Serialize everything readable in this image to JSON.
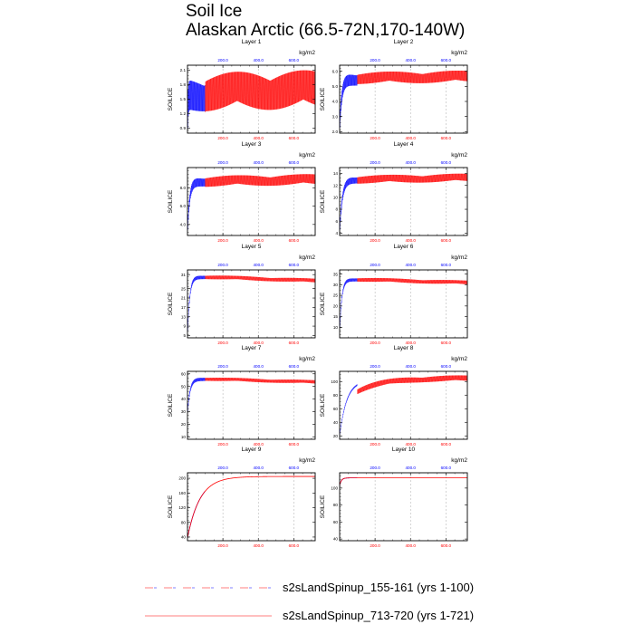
{
  "figure": {
    "title_line1": "Soil Ice",
    "title_line2": "Alaskan Arctic (66.5-72N,170-140W)",
    "ylabel": "SOILICE",
    "top_axis_unit": "kg/m2"
  },
  "legend": [
    {
      "label": "s2sLandSpinup_155-161 (yrs 1-100)",
      "color": "#0000ff",
      "style": "dashed"
    },
    {
      "label": "s2sLandSpinup_713-720 (yrs 1-721)",
      "color": "#ff0000",
      "style": "solid"
    }
  ],
  "chart_data": [
    {
      "type": "line",
      "title": "Layer 1",
      "ylabel": "SOILICE",
      "yticks": [
        "0.9",
        "1.2",
        "1.5",
        "1.8",
        "2.1"
      ],
      "ylim": [
        0.8,
        2.2
      ],
      "xlim": [
        0,
        721
      ],
      "bottom_xticks": [
        "200.0",
        "400.0",
        "600.0"
      ],
      "top_xticks": [
        "200.0",
        "400.0",
        "600.0"
      ],
      "top_unit": "kg/m2",
      "series": [
        {
          "name": "s2sLandSpinup_155-161 (yrs 1-100)",
          "color": "#0000ff",
          "years": [
            1,
            100
          ],
          "start": 1.05,
          "level": 1.6,
          "amplitude": 0.35,
          "rise_tau": 3,
          "trend": 0
        },
        {
          "name": "s2sLandSpinup_713-720 (yrs 1-721)",
          "color": "#ff0000",
          "years": [
            100,
            721
          ],
          "start": 1.6,
          "level": 1.65,
          "amplitude": 0.4,
          "rise_tau": 1,
          "trend": 0.05
        }
      ]
    },
    {
      "type": "line",
      "title": "Layer 2",
      "ylabel": "SOILICE",
      "yticks": [
        "2.0",
        "3.0",
        "4.0",
        "5.0",
        "6.0"
      ],
      "ylim": [
        1.9,
        6.4
      ],
      "xlim": [
        0,
        721
      ],
      "bottom_xticks": [
        "200.0",
        "400.0",
        "600.0"
      ],
      "top_xticks": [
        "200.0",
        "400.0",
        "600.0"
      ],
      "top_unit": "kg/m2",
      "series": [
        {
          "name": "s2sLandSpinup_155-161 (yrs 1-100)",
          "color": "#0000ff",
          "years": [
            1,
            100
          ],
          "start": 2.4,
          "level": 5.5,
          "amplitude": 0.45,
          "rise_tau": 12,
          "trend": 0
        },
        {
          "name": "s2sLandSpinup_713-720 (yrs 1-721)",
          "color": "#ff0000",
          "years": [
            100,
            721
          ],
          "start": 5.55,
          "level": 5.55,
          "amplitude": 0.4,
          "rise_tau": 1,
          "trend": 0.1
        }
      ]
    },
    {
      "type": "line",
      "title": "Layer 3",
      "ylabel": "SOILICE",
      "yticks": [
        "4.0",
        "6.0",
        "8.0"
      ],
      "ylim": [
        2.8,
        10.2
      ],
      "xlim": [
        0,
        721
      ],
      "bottom_xticks": [
        "200.0",
        "400.0",
        "600.0"
      ],
      "top_xticks": [
        "200.0",
        "400.0",
        "600.0"
      ],
      "top_unit": "kg/m2",
      "series": [
        {
          "name": "s2sLandSpinup_155-161 (yrs 1-100)",
          "color": "#0000ff",
          "years": [
            1,
            100
          ],
          "start": 3.5,
          "level": 8.7,
          "amplitude": 0.55,
          "rise_tau": 12,
          "trend": 0
        },
        {
          "name": "s2sLandSpinup_713-720 (yrs 1-721)",
          "color": "#ff0000",
          "years": [
            100,
            721
          ],
          "start": 8.7,
          "level": 8.7,
          "amplitude": 0.6,
          "rise_tau": 1,
          "trend": 0.2
        }
      ]
    },
    {
      "type": "line",
      "title": "Layer 4",
      "ylabel": "SOILICE",
      "yticks": [
        "4",
        "6",
        "8",
        "10",
        "12",
        "14"
      ],
      "ylim": [
        3.6,
        15
      ],
      "xlim": [
        0,
        721
      ],
      "bottom_xticks": [
        "200.0",
        "400.0",
        "600.0"
      ],
      "top_xticks": [
        "200.0",
        "400.0",
        "600.0"
      ],
      "top_unit": "kg/m2",
      "series": [
        {
          "name": "s2sLandSpinup_155-161 (yrs 1-100)",
          "color": "#0000ff",
          "years": [
            1,
            100
          ],
          "start": 4.6,
          "level": 13.0,
          "amplitude": 0.65,
          "rise_tau": 15,
          "trend": 0
        },
        {
          "name": "s2sLandSpinup_713-720 (yrs 1-721)",
          "color": "#ff0000",
          "years": [
            100,
            721
          ],
          "start": 13.0,
          "level": 13.0,
          "amplitude": 0.7,
          "rise_tau": 1,
          "trend": 0.3
        }
      ]
    },
    {
      "type": "line",
      "title": "Layer 5",
      "ylabel": "SOILICE",
      "yticks": [
        "5",
        "9",
        "13",
        "17",
        "21",
        "25",
        "31"
      ],
      "ylim": [
        4,
        33
      ],
      "xlim": [
        0,
        721
      ],
      "bottom_xticks": [
        "200.0",
        "400.0",
        "600.0"
      ],
      "top_xticks": [
        "200.0",
        "400.0",
        "600.0"
      ],
      "top_unit": "kg/m2",
      "series": [
        {
          "name": "s2sLandSpinup_155-161 (yrs 1-100)",
          "color": "#0000ff",
          "years": [
            1,
            100
          ],
          "start": 6,
          "level": 30.0,
          "amplitude": 0.9,
          "rise_tau": 12,
          "trend": 0
        },
        {
          "name": "s2sLandSpinup_713-720 (yrs 1-721)",
          "color": "#ff0000",
          "years": [
            100,
            721
          ],
          "start": 30.0,
          "level": 30.0,
          "amplitude": 0.9,
          "rise_tau": 1,
          "trend": -1.6
        }
      ]
    },
    {
      "type": "line",
      "title": "Layer 6",
      "ylabel": "SOILICE",
      "yticks": [
        "10",
        "15",
        "20",
        "25",
        "30",
        "35"
      ],
      "ylim": [
        5,
        37
      ],
      "xlim": [
        0,
        721
      ],
      "bottom_xticks": [
        "200.0",
        "400.0",
        "600.0"
      ],
      "top_xticks": [
        "200.0",
        "400.0",
        "600.0"
      ],
      "top_unit": "kg/m2",
      "series": [
        {
          "name": "s2sLandSpinup_155-161 (yrs 1-100)",
          "color": "#0000ff",
          "years": [
            1,
            100
          ],
          "start": 9,
          "level": 32.5,
          "amplitude": 0.9,
          "rise_tau": 12,
          "trend": 0
        },
        {
          "name": "s2sLandSpinup_713-720 (yrs 1-721)",
          "color": "#ff0000",
          "years": [
            100,
            721
          ],
          "start": 32.5,
          "level": 32.5,
          "amplitude": 1.0,
          "rise_tau": 1,
          "trend": -1.5
        }
      ]
    },
    {
      "type": "line",
      "title": "Layer 7",
      "ylabel": "SOILICE",
      "yticks": [
        "10",
        "20",
        "30",
        "40",
        "50",
        "60"
      ],
      "ylim": [
        8,
        62
      ],
      "xlim": [
        0,
        721
      ],
      "bottom_xticks": [
        "200.0",
        "400.0",
        "600.0"
      ],
      "top_xticks": [
        "200.0",
        "400.0",
        "600.0"
      ],
      "top_unit": "kg/m2",
      "series": [
        {
          "name": "s2sLandSpinup_155-161 (yrs 1-100)",
          "color": "#0000ff",
          "years": [
            1,
            100
          ],
          "start": 30,
          "level": 56.0,
          "amplitude": 1.6,
          "rise_tau": 14,
          "trend": 0
        },
        {
          "name": "s2sLandSpinup_713-720 (yrs 1-721)",
          "color": "#ff0000",
          "years": [
            100,
            721
          ],
          "start": 56.0,
          "level": 56.0,
          "amplitude": 1.5,
          "rise_tau": 1,
          "trend": -2.5
        }
      ]
    },
    {
      "type": "line",
      "title": "Layer 8",
      "ylabel": "SOILICE",
      "yticks": [
        "20",
        "40",
        "60",
        "80",
        "100"
      ],
      "ylim": [
        15,
        115
      ],
      "xlim": [
        0,
        721
      ],
      "bottom_xticks": [
        "200.0",
        "400.0",
        "600.0"
      ],
      "top_xticks": [
        "200.0",
        "400.0",
        "600.0"
      ],
      "top_unit": "kg/m2",
      "series": [
        {
          "name": "s2sLandSpinup_155-161 (yrs 1-100)",
          "color": "#0000ff",
          "years": [
            1,
            100
          ],
          "start": 22,
          "level": 102.0,
          "amplitude": 1.5,
          "rise_tau": 40,
          "trend": 0
        },
        {
          "name": "s2sLandSpinup_713-720 (yrs 1-721)",
          "color": "#ff0000",
          "years": [
            100,
            721
          ],
          "start": 86.0,
          "level": 105.0,
          "amplitude": 4.5,
          "rise_tau": 150,
          "trend": 0
        }
      ]
    },
    {
      "type": "line",
      "title": "Layer 9",
      "ylabel": "SOILICE",
      "yticks": [
        "40",
        "80",
        "120",
        "160",
        "200"
      ],
      "ylim": [
        30,
        215
      ],
      "xlim": [
        0,
        721
      ],
      "bottom_xticks": [
        "200.0",
        "400.0",
        "600.0"
      ],
      "top_xticks": [
        "200.0",
        "400.0",
        "600.0"
      ],
      "top_unit": "kg/m2",
      "series": [
        {
          "name": "s2sLandSpinup_155-161 (yrs 1-100)",
          "color": "#0000ff",
          "years": [
            1,
            100
          ],
          "start": 40,
          "level": 205.0,
          "amplitude": 0,
          "rise_tau": 70,
          "trend": 0
        },
        {
          "name": "s2sLandSpinup_713-720 (yrs 1-721)",
          "color": "#ff0000",
          "years": [
            1,
            721
          ],
          "start": 40,
          "level": 205.0,
          "amplitude": 0,
          "rise_tau": 70,
          "trend": 0
        }
      ]
    },
    {
      "type": "line",
      "title": "Layer 10",
      "ylabel": "SOILICE",
      "yticks": [
        "40",
        "60",
        "80",
        "100"
      ],
      "ylim": [
        38,
        118
      ],
      "xlim": [
        0,
        721
      ],
      "bottom_xticks": [
        "200.0",
        "400.0",
        "600.0"
      ],
      "top_xticks": [
        "200.0",
        "400.0",
        "600.0"
      ],
      "top_unit": "kg/m2",
      "series": [
        {
          "name": "s2sLandSpinup_155-161 (yrs 1-100)",
          "color": "#0000ff",
          "years": [
            1,
            100
          ],
          "start": 104,
          "level": 112.0,
          "amplitude": 0,
          "rise_tau": 10,
          "trend": 0
        },
        {
          "name": "s2sLandSpinup_713-720 (yrs 1-721)",
          "color": "#ff0000",
          "years": [
            1,
            721
          ],
          "start": 104,
          "level": 112.0,
          "amplitude": 0,
          "rise_tau": 10,
          "trend": 0
        }
      ]
    }
  ]
}
